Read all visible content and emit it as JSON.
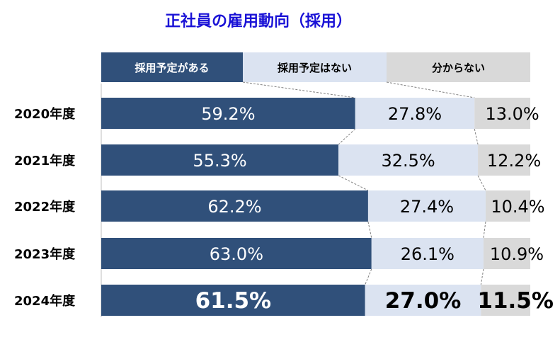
{
  "chart_data": {
    "type": "bar",
    "orientation": "horizontal-stacked-100",
    "title": "正社員の雇用動向（採用）",
    "legend_position": "top",
    "categories": [
      "2020年度",
      "2021年度",
      "2022年度",
      "2023年度",
      "2024年度"
    ],
    "series": [
      {
        "name": "採用予定がある",
        "color": "#30507a",
        "values": [
          59.2,
          55.3,
          62.2,
          63.0,
          61.5
        ],
        "labels": [
          "59.2%",
          "55.3%",
          "62.2%",
          "63.0%",
          "61.5%"
        ]
      },
      {
        "name": "採用予定はない",
        "color": "#dbe3f1",
        "values": [
          27.8,
          32.5,
          27.4,
          26.1,
          27.0
        ],
        "labels": [
          "27.8%",
          "32.5%",
          "27.4%",
          "26.1%",
          "27.0%"
        ]
      },
      {
        "name": "分からない",
        "color": "#d9d9d9",
        "values": [
          13.0,
          12.2,
          10.4,
          10.9,
          11.5
        ],
        "labels": [
          "13.0%",
          "12.2%",
          "10.4%",
          "10.9%",
          "11.5%"
        ]
      }
    ],
    "highlight_category": "2024年度",
    "xlim": [
      0,
      100
    ],
    "grid": false
  },
  "colors": {
    "title": "#1a12d6",
    "text_dark": "#000000",
    "text_light": "#ffffff",
    "connector": "#808080"
  }
}
